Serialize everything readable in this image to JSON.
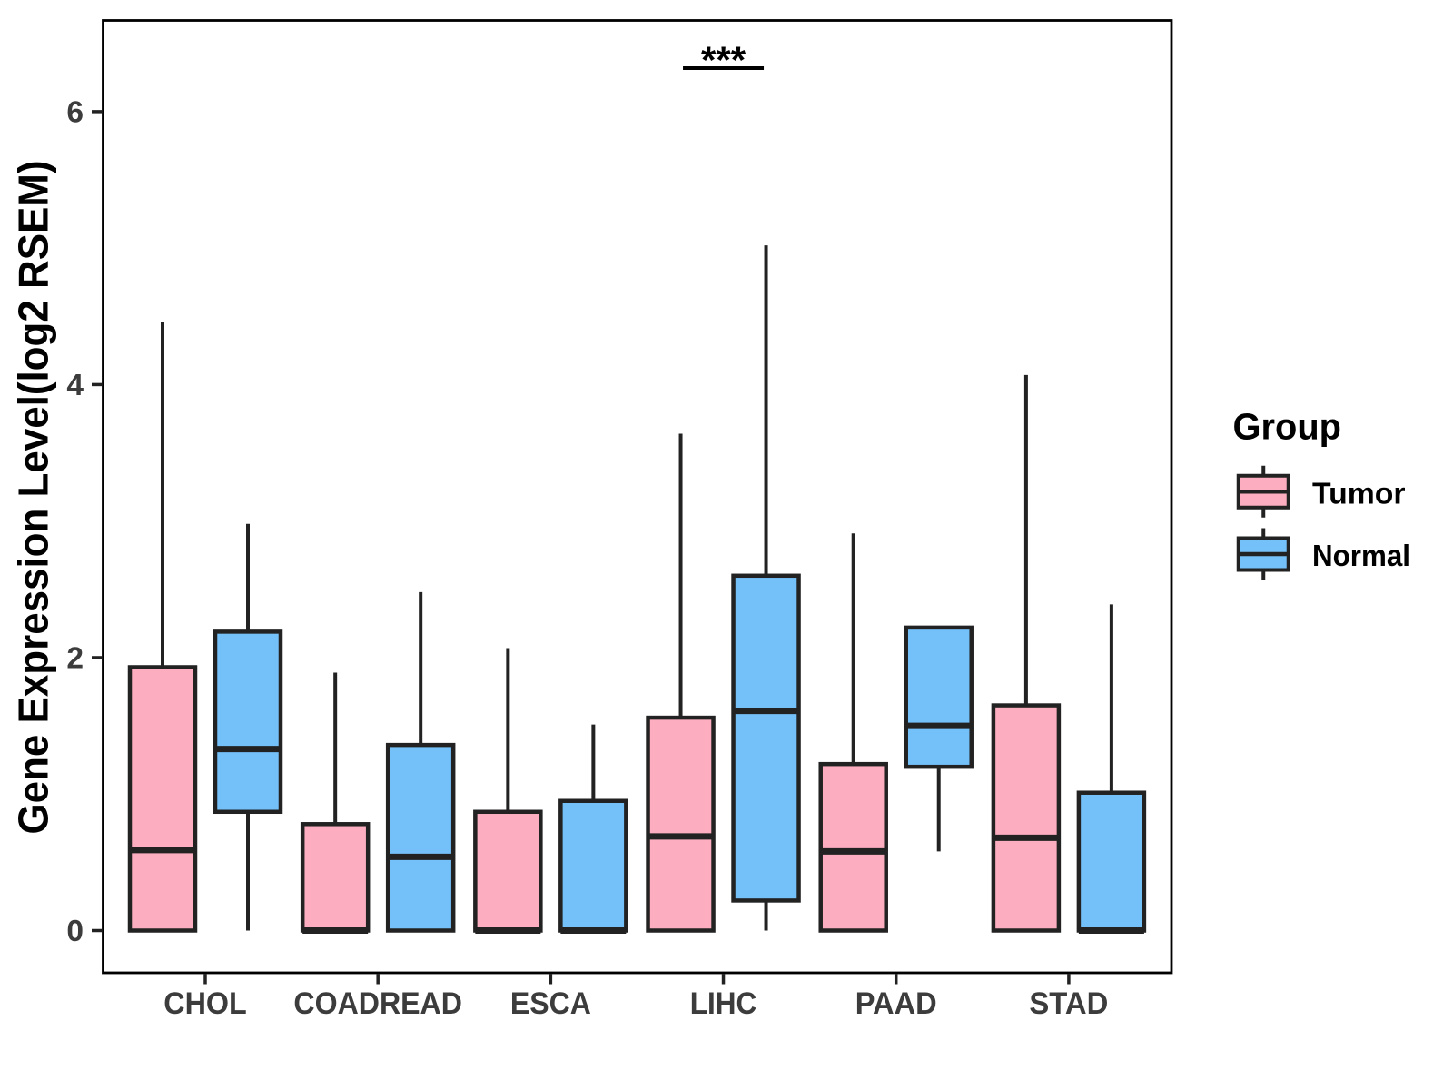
{
  "chart_data": {
    "type": "boxplot",
    "title": "",
    "xlabel": "",
    "ylabel": "Gene Expression Level(log2 RSEM)",
    "categories": [
      "CHOL",
      "COADREAD",
      "ESCA",
      "LIHC",
      "PAAD",
      "STAD"
    ],
    "y_ticks": [
      "0",
      "2",
      "4",
      "6"
    ],
    "y_tick_values": [
      0,
      2,
      4,
      6
    ],
    "ylim": [
      -0.31,
      6.67
    ],
    "grid": false,
    "colors": {
      "tumor_fill": "#FCAEC0",
      "normal_fill": "#74C0F8",
      "line": "#222222",
      "panel_border": "#000000",
      "axis_text": "#3C3C3C",
      "title_text": "#000000"
    },
    "legend": {
      "title": "Group",
      "position": "right",
      "entries": [
        {
          "label": "Tumor",
          "color": "#FCAEC0"
        },
        {
          "label": "Normal",
          "color": "#74C0F8"
        }
      ]
    },
    "series": [
      {
        "name": "Tumor",
        "color": "#FCAEC0",
        "boxes": [
          {
            "min": 0,
            "q1": 0,
            "median": 0.59,
            "q3": 1.93,
            "max": 4.46
          },
          {
            "min": 0,
            "q1": 0,
            "median": 0,
            "q3": 0.78,
            "max": 1.89
          },
          {
            "min": 0,
            "q1": 0,
            "median": 0,
            "q3": 0.87,
            "max": 2.07
          },
          {
            "min": 0,
            "q1": 0,
            "median": 0.69,
            "q3": 1.56,
            "max": 3.64
          },
          {
            "min": 0,
            "q1": 0,
            "median": 0.58,
            "q3": 1.22,
            "max": 2.91
          },
          {
            "min": 0,
            "q1": 0,
            "median": 0.68,
            "q3": 1.65,
            "max": 4.07
          }
        ]
      },
      {
        "name": "Normal",
        "color": "#74C0F8",
        "boxes": [
          {
            "min": 0,
            "q1": 0.87,
            "median": 1.33,
            "q3": 2.19,
            "max": 2.98
          },
          {
            "min": 0,
            "q1": 0,
            "median": 0.54,
            "q3": 1.36,
            "max": 2.48
          },
          {
            "min": 0,
            "q1": 0,
            "median": 0,
            "q3": 0.95,
            "max": 1.51
          },
          {
            "min": 0,
            "q1": 0.22,
            "median": 1.61,
            "q3": 2.6,
            "max": 5.02
          },
          {
            "min": 0.58,
            "q1": 1.2,
            "median": 1.5,
            "q3": 2.22,
            "max": 2.22
          },
          {
            "min": 0,
            "q1": 0,
            "median": 0,
            "q3": 1.01,
            "max": 2.39
          }
        ]
      }
    ],
    "annotations": [
      {
        "type": "significance",
        "label": "***",
        "category": "LIHC",
        "between": [
          "Tumor",
          "Normal"
        ]
      }
    ]
  }
}
